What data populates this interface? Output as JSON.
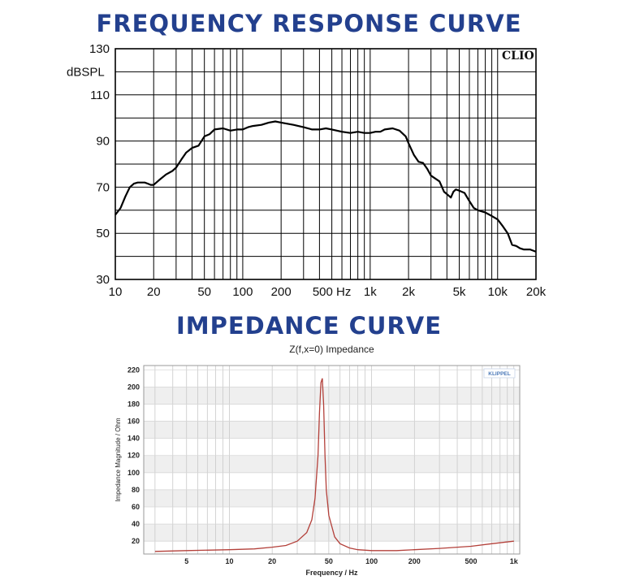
{
  "headings": {
    "frequency": "FREQUENCY RESPONSE CURVE",
    "impedance": "IMPEDANCE CURVE"
  },
  "colors": {
    "heading": "#23408e",
    "freq_curve": "#000000",
    "imp_curve": "#b3403a",
    "imp_band": "#efefef",
    "logo_blue": "#4a78b8"
  },
  "chart_data": [
    {
      "type": "line",
      "title": "",
      "xlabel": "",
      "ylabel": "dBSPL",
      "logo": "CLIO",
      "xscale": "log",
      "xlim": [
        10,
        20000
      ],
      "ylim": [
        30,
        130
      ],
      "grid": true,
      "x_ticks": [
        {
          "value": 10,
          "label": "10"
        },
        {
          "value": 20,
          "label": "20"
        },
        {
          "value": 50,
          "label": "50"
        },
        {
          "value": 100,
          "label": "100"
        },
        {
          "value": 200,
          "label": "200"
        },
        {
          "value": 500,
          "label": "500 Hz"
        },
        {
          "value": 1000,
          "label": "1k"
        },
        {
          "value": 2000,
          "label": "2k"
        },
        {
          "value": 5000,
          "label": "5k"
        },
        {
          "value": 10000,
          "label": "10k"
        },
        {
          "value": 20000,
          "label": "20k"
        }
      ],
      "y_ticks": [
        {
          "value": 30,
          "label": "30"
        },
        {
          "value": 50,
          "label": "50"
        },
        {
          "value": 70,
          "label": "70"
        },
        {
          "value": 90,
          "label": "90"
        },
        {
          "value": 110,
          "label": "110"
        },
        {
          "value": 130,
          "label": "130"
        }
      ],
      "series": [
        {
          "x": [
            10,
            11,
            12,
            13,
            14,
            15,
            16,
            17,
            18,
            19,
            20,
            22,
            25,
            28,
            30,
            33,
            36,
            40,
            45,
            50,
            55,
            60,
            70,
            80,
            90,
            100,
            110,
            120,
            140,
            160,
            180,
            200,
            250,
            300,
            350,
            400,
            450,
            500,
            600,
            700,
            800,
            900,
            1000,
            1100,
            1200,
            1300,
            1500,
            1700,
            1900,
            2000,
            2200,
            2400,
            2600,
            2800,
            3000,
            3500,
            3800,
            4000,
            4300,
            4500,
            4700,
            5000,
            5500,
            6000,
            6500,
            7000,
            8000,
            9000,
            10000,
            11000,
            12000,
            13000,
            14000,
            15000,
            16000,
            18000,
            20000
          ],
          "y": [
            58,
            61,
            66,
            70,
            71.5,
            72,
            72,
            72,
            71.5,
            71,
            71,
            73,
            75.5,
            77,
            78.5,
            82,
            85,
            87,
            88,
            92,
            93,
            95,
            95.5,
            94.5,
            95,
            95,
            96,
            96.5,
            97,
            98,
            98.5,
            98,
            97,
            96,
            95,
            95,
            95.5,
            95,
            94,
            93.5,
            94,
            93.5,
            93.5,
            94,
            94,
            95,
            95.5,
            94.5,
            92,
            89,
            84,
            81,
            80.5,
            78,
            75,
            72.5,
            68,
            67,
            65.5,
            68,
            69,
            68.5,
            67.5,
            64,
            61,
            60,
            59,
            57.5,
            56,
            53,
            50,
            45,
            44.5,
            43.5,
            43,
            43,
            42
          ]
        }
      ]
    },
    {
      "type": "line",
      "title": "Z(f,x=0) Impedance",
      "xlabel": "Frequency / Hz",
      "ylabel": "Impedance Magnitude / Ohm",
      "logo": "KLIPPEL",
      "xscale": "log",
      "xlim": [
        2.5,
        1100
      ],
      "ylim": [
        5,
        225
      ],
      "grid": true,
      "x_ticks": [
        {
          "value": 5,
          "label": "5"
        },
        {
          "value": 10,
          "label": "10"
        },
        {
          "value": 20,
          "label": "20"
        },
        {
          "value": 50,
          "label": "50"
        },
        {
          "value": 100,
          "label": "100"
        },
        {
          "value": 200,
          "label": "200"
        },
        {
          "value": 500,
          "label": "500"
        },
        {
          "value": 1000,
          "label": "1k"
        }
      ],
      "y_ticks": [
        {
          "value": 20,
          "label": "20"
        },
        {
          "value": 40,
          "label": "40"
        },
        {
          "value": 60,
          "label": "60"
        },
        {
          "value": 80,
          "label": "80"
        },
        {
          "value": 100,
          "label": "100"
        },
        {
          "value": 120,
          "label": "120"
        },
        {
          "value": 140,
          "label": "140"
        },
        {
          "value": 160,
          "label": "160"
        },
        {
          "value": 180,
          "label": "180"
        },
        {
          "value": 200,
          "label": "200"
        },
        {
          "value": 220,
          "label": "220"
        }
      ],
      "series": [
        {
          "x": [
            3,
            5,
            10,
            15,
            20,
            25,
            30,
            35,
            38,
            40,
            42,
            43,
            44,
            45,
            46,
            47,
            48,
            50,
            55,
            60,
            70,
            80,
            100,
            150,
            200,
            300,
            500,
            700,
            1000
          ],
          "y": [
            8,
            9,
            10,
            11,
            13,
            15,
            20,
            30,
            45,
            70,
            120,
            170,
            205,
            210,
            180,
            120,
            80,
            50,
            25,
            17,
            12,
            10,
            9,
            9,
            10,
            11.5,
            14,
            17,
            20
          ]
        }
      ]
    }
  ]
}
